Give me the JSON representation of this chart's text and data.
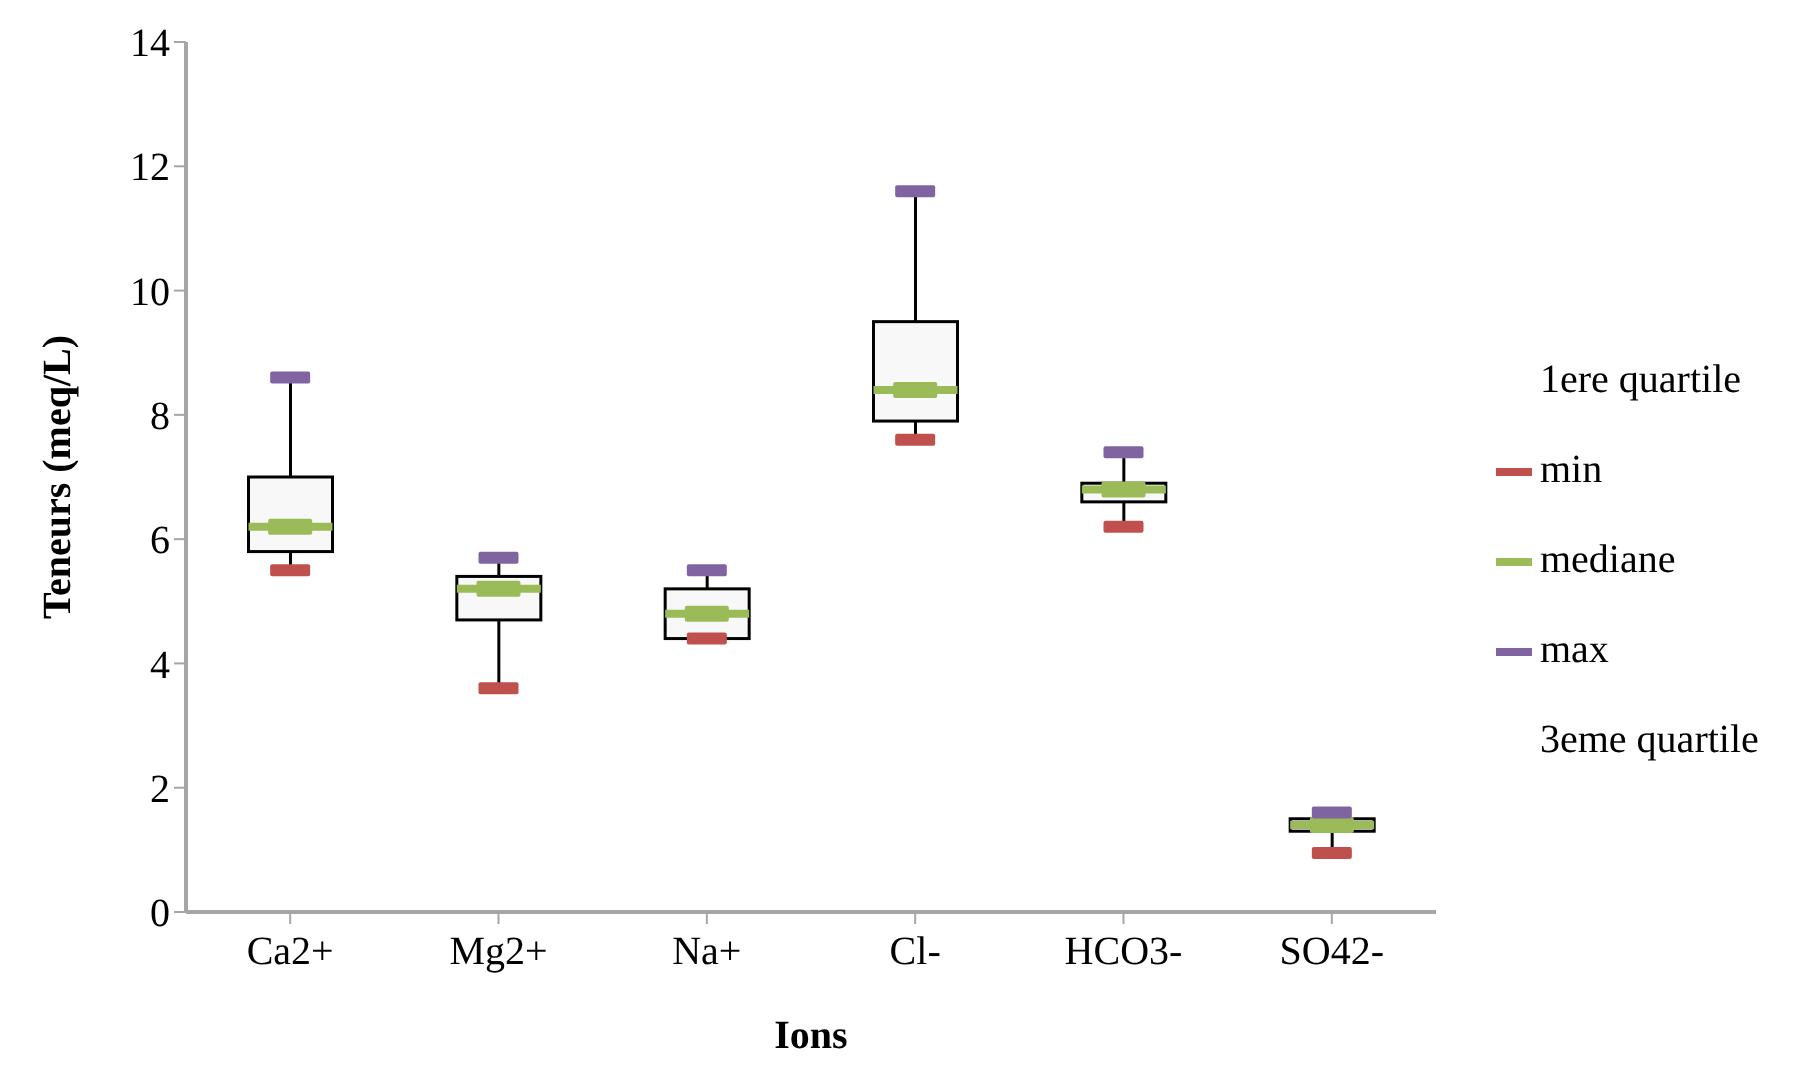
{
  "chart_data": {
    "type": "box",
    "xlabel": "Ions",
    "ylabel": "Teneurs (meq/L)",
    "categories": [
      "Ca2+",
      "Mg2+",
      "Na+",
      "Cl-",
      "HCO3-",
      "SO42-"
    ],
    "boxes": [
      {
        "low": 5.5,
        "q1": 5.8,
        "median": 6.2,
        "q3": 7.0,
        "high": 8.6
      },
      {
        "low": 3.6,
        "q1": 4.7,
        "median": 5.2,
        "q3": 5.4,
        "high": 5.7
      },
      {
        "low": 4.4,
        "q1": 4.4,
        "median": 4.8,
        "q3": 5.2,
        "high": 5.5
      },
      {
        "low": 7.6,
        "q1": 7.9,
        "median": 8.4,
        "q3": 9.5,
        "high": 11.6
      },
      {
        "low": 6.2,
        "q1": 6.6,
        "median": 6.8,
        "q3": 6.9,
        "high": 7.4
      },
      {
        "low": 0.95,
        "q1": 1.3,
        "median": 1.4,
        "q3": 1.5,
        "high": 1.6
      }
    ],
    "series": [
      {
        "name": "min",
        "type": "scatter",
        "marker": "square",
        "color": "#c0504d",
        "values": [
          5.5,
          3.6,
          4.4,
          7.6,
          6.2,
          0.95
        ]
      },
      {
        "name": "mediane",
        "type": "scatter",
        "marker": "square",
        "color": "#9bbb59",
        "values": [
          6.2,
          5.2,
          4.8,
          8.4,
          6.8,
          1.4
        ]
      },
      {
        "name": "max",
        "type": "scatter",
        "marker": "square",
        "color": "#8064a2",
        "values": [
          8.6,
          5.7,
          5.5,
          11.6,
          7.4,
          1.6
        ]
      }
    ],
    "annotations": [
      "1ere quartile",
      "3eme quartile"
    ],
    "ylim": [
      0,
      14
    ],
    "yticks": [
      0,
      2,
      4,
      6,
      8,
      10,
      12,
      14
    ],
    "legend": "right",
    "grid": false
  }
}
